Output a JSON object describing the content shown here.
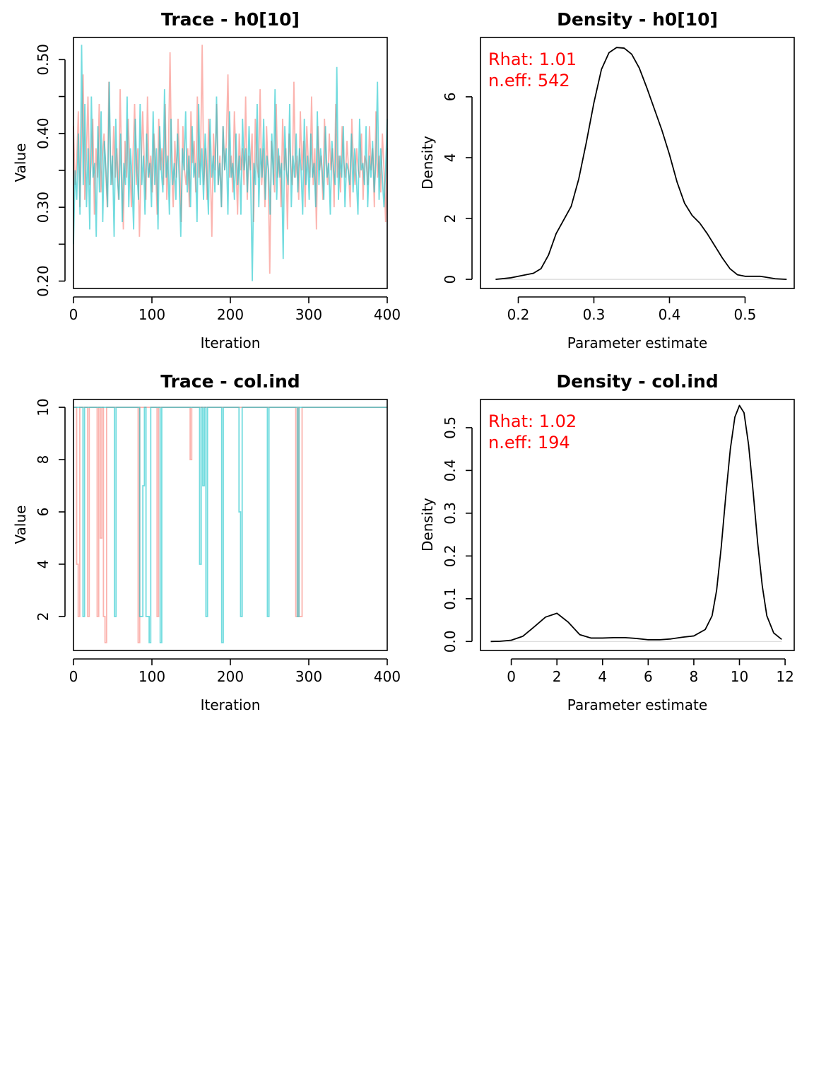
{
  "colors": {
    "chain1": "#F8766D",
    "chain2": "#00BFC4",
    "density": "#000000",
    "stat_text": "#FF0000",
    "zero_line": "#D9D9D9"
  },
  "chart_data": [
    {
      "id": "trace-h0",
      "type": "line",
      "title": "Trace - h0[10]",
      "xlabel": "Iteration",
      "ylabel": "Value",
      "xlim": [
        0,
        400
      ],
      "ylim": [
        0.19,
        0.53
      ],
      "xticks": [
        "0",
        "100",
        "200",
        "300",
        "400"
      ],
      "yticks": [
        "0.20",
        "0.30",
        "0.40",
        "0.50"
      ],
      "ytick_values": [
        0.2,
        0.3,
        0.4,
        0.5
      ],
      "y_minor_ticks": [
        0.25,
        0.35,
        0.45
      ],
      "series": [
        {
          "values": [
            0.41,
            0.33,
            0.36,
            0.43,
            0.3,
            0.39,
            0.48,
            0.31,
            0.37,
            0.45,
            0.33,
            0.36,
            0.42,
            0.29,
            0.38,
            0.34,
            0.44,
            0.32,
            0.37,
            0.4,
            0.35,
            0.3,
            0.47,
            0.36,
            0.33,
            0.41,
            0.34,
            0.38,
            0.31,
            0.46,
            0.35,
            0.27,
            0.39,
            0.34,
            0.42,
            0.36,
            0.3,
            0.37,
            0.44,
            0.33,
            0.38,
            0.26,
            0.35,
            0.43,
            0.36,
            0.31,
            0.45,
            0.34,
            0.37,
            0.32,
            0.4,
            0.36,
            0.29,
            0.42,
            0.35,
            0.38,
            0.33,
            0.44,
            0.31,
            0.37,
            0.51,
            0.35,
            0.3,
            0.39,
            0.34,
            0.42,
            0.36,
            0.28,
            0.41,
            0.35,
            0.33,
            0.38,
            0.3,
            0.43,
            0.36,
            0.39,
            0.32,
            0.45,
            0.34,
            0.37,
            0.52,
            0.33,
            0.38,
            0.31,
            0.42,
            0.36,
            0.26,
            0.4,
            0.35,
            0.44,
            0.33,
            0.37,
            0.3,
            0.41,
            0.35,
            0.39,
            0.48,
            0.34,
            0.37,
            0.32,
            0.43,
            0.36,
            0.29,
            0.4,
            0.35,
            0.38,
            0.33,
            0.45,
            0.31,
            0.37,
            0.35,
            0.4,
            0.28,
            0.42,
            0.36,
            0.34,
            0.46,
            0.33,
            0.38,
            0.3,
            0.41,
            0.35,
            0.21,
            0.39,
            0.36,
            0.32,
            0.44,
            0.34,
            0.37,
            0.3,
            0.42,
            0.35,
            0.38,
            0.27,
            0.4,
            0.36,
            0.33,
            0.47,
            0.34,
            0.37,
            0.31,
            0.43,
            0.35,
            0.39,
            0.3,
            0.41,
            0.36,
            0.34,
            0.45,
            0.33,
            0.38,
            0.27,
            0.41,
            0.35,
            0.37,
            0.31,
            0.42,
            0.36,
            0.33,
            0.4,
            0.35,
            0.38,
            0.3,
            0.44,
            0.34,
            0.37,
            0.32,
            0.41,
            0.36,
            0.34,
            0.39,
            0.35,
            0.3,
            0.42,
            0.36,
            0.33,
            0.38,
            0.35,
            0.34,
            0.4,
            0.31,
            0.37,
            0.36,
            0.33,
            0.41,
            0.35,
            0.38,
            0.3,
            0.43,
            0.34,
            0.37,
            0.32,
            0.4,
            0.35,
            0.28,
            0.38
          ],
          "color_key": "chain1"
        },
        {
          "values": [
            0.25,
            0.35,
            0.31,
            0.4,
            0.29,
            0.52,
            0.33,
            0.44,
            0.3,
            0.38,
            0.27,
            0.45,
            0.34,
            0.36,
            0.26,
            0.41,
            0.32,
            0.43,
            0.28,
            0.39,
            0.35,
            0.3,
            0.47,
            0.33,
            0.37,
            0.26,
            0.42,
            0.34,
            0.31,
            0.4,
            0.28,
            0.36,
            0.33,
            0.45,
            0.3,
            0.38,
            0.34,
            0.27,
            0.42,
            0.35,
            0.31,
            0.44,
            0.33,
            0.37,
            0.29,
            0.4,
            0.34,
            0.36,
            0.3,
            0.43,
            0.33,
            0.38,
            0.27,
            0.41,
            0.35,
            0.32,
            0.46,
            0.34,
            0.37,
            0.29,
            0.42,
            0.33,
            0.36,
            0.31,
            0.4,
            0.34,
            0.26,
            0.38,
            0.35,
            0.43,
            0.32,
            0.37,
            0.3,
            0.41,
            0.34,
            0.36,
            0.28,
            0.44,
            0.33,
            0.38,
            0.31,
            0.4,
            0.35,
            0.29,
            0.42,
            0.34,
            0.37,
            0.32,
            0.45,
            0.33,
            0.36,
            0.3,
            0.41,
            0.35,
            0.38,
            0.29,
            0.43,
            0.34,
            0.36,
            0.31,
            0.4,
            0.33,
            0.37,
            0.29,
            0.42,
            0.35,
            0.38,
            0.32,
            0.41,
            0.34,
            0.2,
            0.36,
            0.33,
            0.44,
            0.3,
            0.38,
            0.34,
            0.42,
            0.31,
            0.37,
            0.35,
            0.29,
            0.4,
            0.33,
            0.46,
            0.31,
            0.38,
            0.34,
            0.36,
            0.23,
            0.41,
            0.35,
            0.33,
            0.44,
            0.3,
            0.37,
            0.34,
            0.4,
            0.32,
            0.38,
            0.35,
            0.29,
            0.42,
            0.33,
            0.37,
            0.31,
            0.4,
            0.34,
            0.36,
            0.3,
            0.43,
            0.33,
            0.38,
            0.35,
            0.31,
            0.41,
            0.34,
            0.36,
            0.29,
            0.39,
            0.35,
            0.33,
            0.49,
            0.31,
            0.37,
            0.34,
            0.41,
            0.3,
            0.36,
            0.35,
            0.33,
            0.4,
            0.32,
            0.38,
            0.34,
            0.29,
            0.42,
            0.35,
            0.36,
            0.33,
            0.41,
            0.3,
            0.37,
            0.34,
            0.39,
            0.32,
            0.36,
            0.47,
            0.31,
            0.38,
            0.34,
            0.3,
            0.35,
            0.42
          ],
          "color_key": "chain2"
        }
      ]
    },
    {
      "id": "density-h0",
      "type": "line",
      "title": "Density - h0[10]",
      "xlabel": "Parameter estimate",
      "ylabel": "Density",
      "xlim": [
        0.15,
        0.565
      ],
      "ylim": [
        -0.3,
        7.95
      ],
      "xticks": [
        "0.2",
        "0.3",
        "0.4",
        "0.5"
      ],
      "xtick_values": [
        0.2,
        0.3,
        0.4,
        0.5
      ],
      "yticks": [
        "0",
        "2",
        "4",
        "6"
      ],
      "ytick_values": [
        0,
        2,
        4,
        6
      ],
      "x": [
        0.17,
        0.19,
        0.2,
        0.21,
        0.22,
        0.23,
        0.24,
        0.25,
        0.26,
        0.27,
        0.28,
        0.29,
        0.3,
        0.31,
        0.32,
        0.33,
        0.34,
        0.35,
        0.36,
        0.37,
        0.38,
        0.39,
        0.4,
        0.41,
        0.42,
        0.43,
        0.44,
        0.45,
        0.46,
        0.47,
        0.48,
        0.49,
        0.5,
        0.51,
        0.52,
        0.53,
        0.54,
        0.555
      ],
      "y": [
        0.0,
        0.05,
        0.1,
        0.15,
        0.2,
        0.35,
        0.8,
        1.5,
        1.95,
        2.4,
        3.3,
        4.5,
        5.8,
        6.9,
        7.45,
        7.62,
        7.6,
        7.4,
        6.95,
        6.3,
        5.6,
        4.9,
        4.1,
        3.2,
        2.5,
        2.1,
        1.85,
        1.5,
        1.1,
        0.7,
        0.35,
        0.15,
        0.1,
        0.1,
        0.1,
        0.06,
        0.02,
        0.0
      ],
      "annotations": {
        "rhat": "Rhat: 1.01",
        "neff": "n.eff: 542"
      }
    },
    {
      "id": "trace-col",
      "type": "line",
      "title": "Trace - col.ind",
      "xlabel": "Iteration",
      "ylabel": "Value",
      "xlim": [
        0,
        400
      ],
      "ylim": [
        0.7,
        10.3
      ],
      "xticks": [
        "0",
        "100",
        "200",
        "300",
        "400"
      ],
      "yticks": [
        "2",
        "4",
        "6",
        "8",
        "10"
      ],
      "ytick_values": [
        2,
        4,
        6,
        8,
        10
      ],
      "y_minor_ticks": [],
      "series": [
        {
          "values": [
            10,
            10,
            4,
            2,
            10,
            10,
            10,
            10,
            10,
            2,
            10,
            10,
            10,
            10,
            10,
            2,
            10,
            5,
            10,
            2,
            1,
            10,
            10,
            10,
            10,
            10,
            10,
            10,
            10,
            10,
            10,
            10,
            10,
            10,
            10,
            10,
            10,
            10,
            10,
            10,
            10,
            1,
            10,
            10,
            10,
            10,
            10,
            10,
            10,
            10,
            10,
            10,
            10,
            2,
            10,
            10,
            10,
            10,
            10,
            10,
            10,
            10,
            10,
            10,
            10,
            10,
            10,
            10,
            10,
            10,
            10,
            10,
            10,
            10,
            8,
            10,
            10,
            10,
            10,
            10,
            10,
            10,
            10,
            10,
            10,
            10,
            10,
            10,
            10,
            10,
            10,
            10,
            10,
            10,
            10,
            10,
            10,
            10,
            10,
            10,
            10,
            10,
            10,
            10,
            10,
            10,
            10,
            10,
            10,
            10,
            10,
            10,
            10,
            10,
            10,
            10,
            10,
            10,
            10,
            10,
            10,
            10,
            10,
            10,
            10,
            10,
            10,
            10,
            10,
            10,
            10,
            10,
            10,
            10,
            10,
            10,
            10,
            10,
            10,
            10,
            10,
            2,
            10,
            2,
            2,
            10,
            10,
            10,
            10,
            10,
            10,
            10,
            10,
            10,
            10,
            10,
            10,
            10,
            10,
            10,
            10,
            10,
            10,
            10,
            10,
            10,
            10,
            10,
            10,
            10,
            10,
            10,
            10,
            10,
            10,
            10,
            10,
            10,
            10,
            10,
            10,
            10,
            10,
            10,
            10,
            10,
            10,
            10,
            10,
            10,
            10,
            10,
            10,
            10,
            10,
            10,
            10,
            10,
            10,
            10
          ],
          "color_key": "chain1"
        },
        {
          "values": [
            10,
            10,
            10,
            10,
            10,
            10,
            2,
            10,
            10,
            10,
            10,
            10,
            10,
            10,
            10,
            10,
            10,
            10,
            10,
            10,
            10,
            10,
            10,
            10,
            10,
            10,
            2,
            10,
            10,
            10,
            10,
            10,
            10,
            10,
            10,
            10,
            10,
            10,
            10,
            10,
            10,
            10,
            2,
            2,
            7,
            10,
            2,
            2,
            1,
            10,
            10,
            10,
            10,
            10,
            10,
            1,
            10,
            10,
            10,
            10,
            10,
            10,
            10,
            10,
            10,
            10,
            10,
            10,
            10,
            10,
            10,
            10,
            10,
            10,
            10,
            10,
            10,
            10,
            10,
            10,
            4,
            10,
            7,
            10,
            2,
            10,
            10,
            10,
            10,
            10,
            10,
            10,
            10,
            10,
            1,
            10,
            10,
            10,
            10,
            10,
            10,
            10,
            10,
            10,
            10,
            6,
            2,
            10,
            10,
            10,
            10,
            10,
            10,
            10,
            10,
            10,
            10,
            10,
            10,
            10,
            10,
            10,
            10,
            2,
            10,
            10,
            10,
            10,
            10,
            10,
            10,
            10,
            10,
            10,
            10,
            10,
            10,
            10,
            10,
            10,
            10,
            10,
            2,
            10,
            10,
            10,
            10,
            10,
            10,
            10,
            10,
            10,
            10,
            10,
            10,
            10,
            10,
            10,
            10,
            10,
            10,
            10,
            10,
            10,
            10,
            10,
            10,
            10,
            10,
            10,
            10,
            10,
            10,
            10,
            10,
            10,
            10,
            10,
            10,
            10,
            10,
            10,
            10,
            10,
            10,
            10,
            10,
            10,
            10,
            10,
            10,
            10,
            10,
            10,
            10,
            10,
            10,
            10,
            10,
            10
          ],
          "color_key": "chain2"
        }
      ]
    },
    {
      "id": "density-col",
      "type": "line",
      "title": "Density - col.ind",
      "xlabel": "Parameter estimate",
      "ylabel": "Density",
      "xlim": [
        -1.35,
        12.4
      ],
      "ylim": [
        -0.021,
        0.566
      ],
      "xticks": [
        "0",
        "2",
        "4",
        "6",
        "8",
        "10",
        "12"
      ],
      "xtick_values": [
        0,
        2,
        4,
        6,
        8,
        10,
        12
      ],
      "yticks": [
        "0.0",
        "0.1",
        "0.2",
        "0.3",
        "0.4",
        "0.5"
      ],
      "ytick_values": [
        0,
        0.1,
        0.2,
        0.3,
        0.4,
        0.5
      ],
      "x": [
        -0.9,
        -0.5,
        0.0,
        0.5,
        1.0,
        1.5,
        2.0,
        2.5,
        3.0,
        3.5,
        4.0,
        4.5,
        5.0,
        5.5,
        6.0,
        6.5,
        7.0,
        7.5,
        8.0,
        8.5,
        8.8,
        9.0,
        9.2,
        9.4,
        9.6,
        9.8,
        10.0,
        10.2,
        10.4,
        10.6,
        10.8,
        11.0,
        11.2,
        11.5,
        11.85
      ],
      "y": [
        0.0,
        0.0005,
        0.003,
        0.012,
        0.034,
        0.057,
        0.066,
        0.045,
        0.016,
        0.008,
        0.008,
        0.009,
        0.009,
        0.007,
        0.004,
        0.004,
        0.006,
        0.01,
        0.013,
        0.028,
        0.06,
        0.12,
        0.22,
        0.34,
        0.45,
        0.525,
        0.552,
        0.535,
        0.46,
        0.35,
        0.23,
        0.13,
        0.06,
        0.02,
        0.005
      ],
      "annotations": {
        "rhat": "Rhat: 1.02",
        "neff": "n.eff: 194"
      }
    }
  ]
}
